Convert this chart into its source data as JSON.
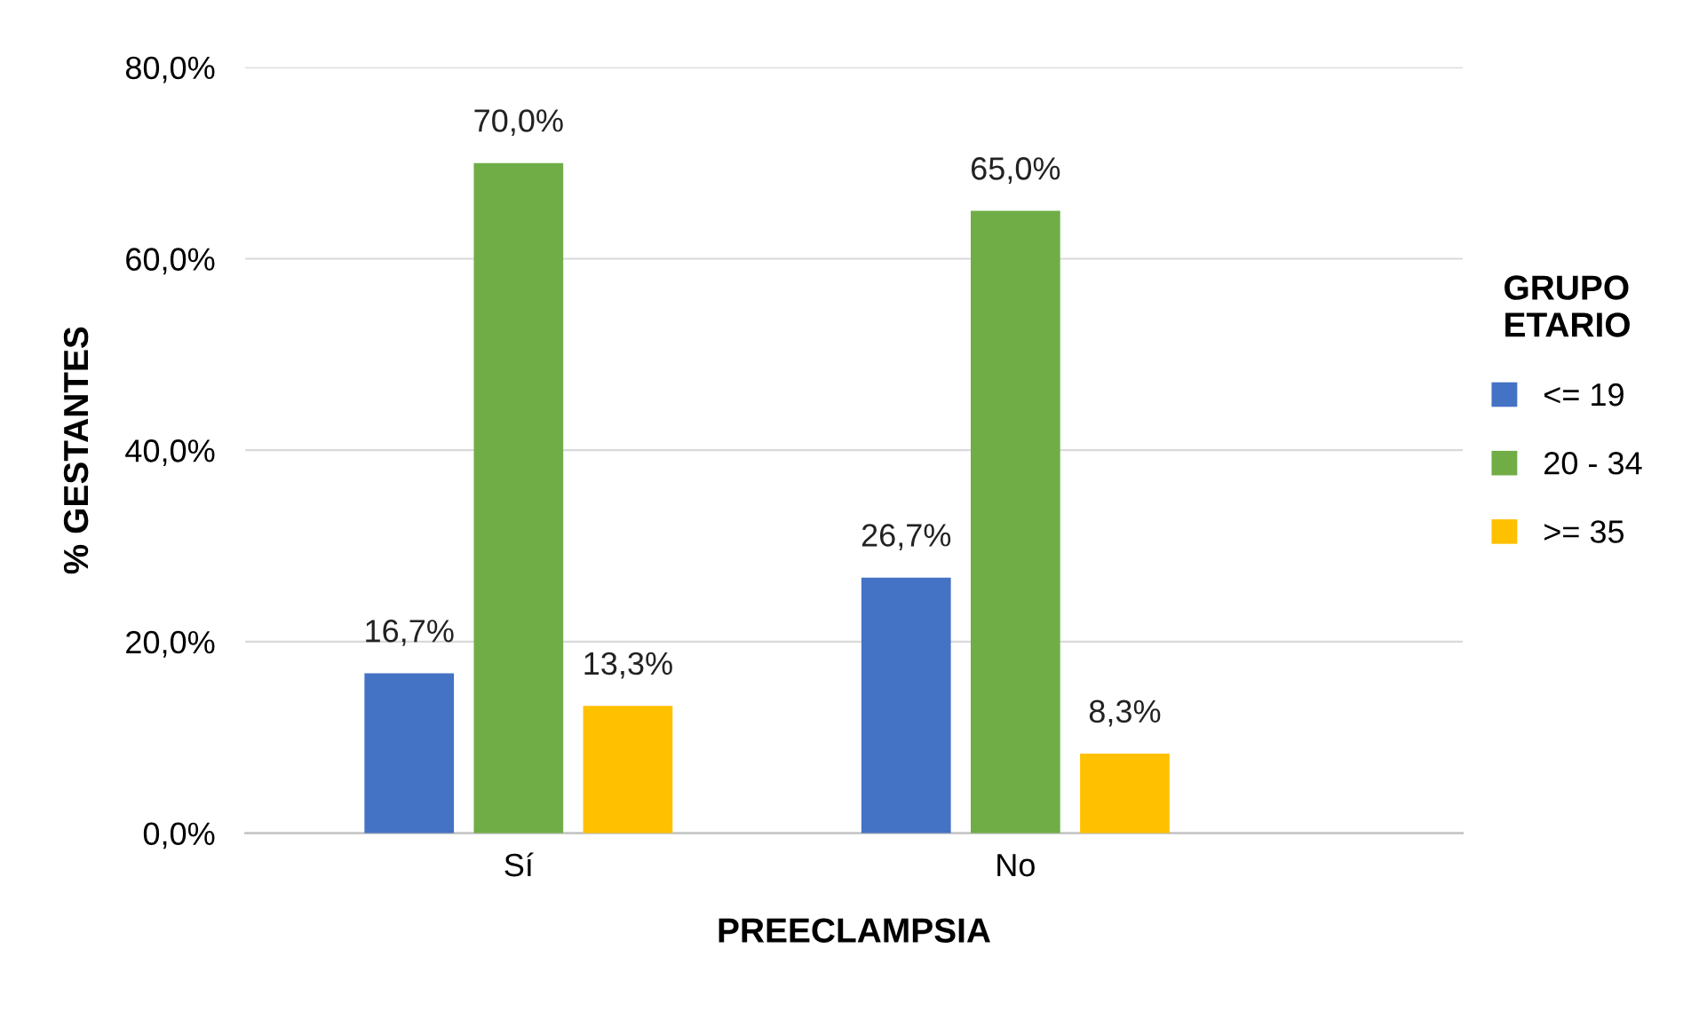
{
  "chart_data": {
    "type": "bar",
    "xlabel": "PREECLAMPSIA",
    "ylabel": "% GESTANTES",
    "legend_title": "GRUPO\nETARIO",
    "categories": [
      "Sí",
      "No"
    ],
    "series": [
      {
        "name": "<= 19",
        "color": "#4472c4",
        "values": [
          16.7,
          26.7
        ],
        "value_labels": [
          "16,7%",
          "26,7%"
        ]
      },
      {
        "name": "20 - 34",
        "color": "#70ad47",
        "values": [
          70.0,
          65.0
        ],
        "value_labels": [
          "70,0%",
          "65,0%"
        ]
      },
      {
        "name": ">= 35",
        "color": "#ffc000",
        "values": [
          13.3,
          8.3
        ],
        "value_labels": [
          "13,3%",
          "8,3%"
        ]
      }
    ],
    "ylim": [
      0,
      80
    ],
    "yticks": [
      {
        "value": 0,
        "label": "0,0%"
      },
      {
        "value": 20,
        "label": "20,0%"
      },
      {
        "value": 40,
        "label": "40,0%"
      },
      {
        "value": 60,
        "label": "60,0%"
      },
      {
        "value": 80,
        "label": "80,0%"
      }
    ],
    "grid": "y",
    "legend": "right"
  }
}
